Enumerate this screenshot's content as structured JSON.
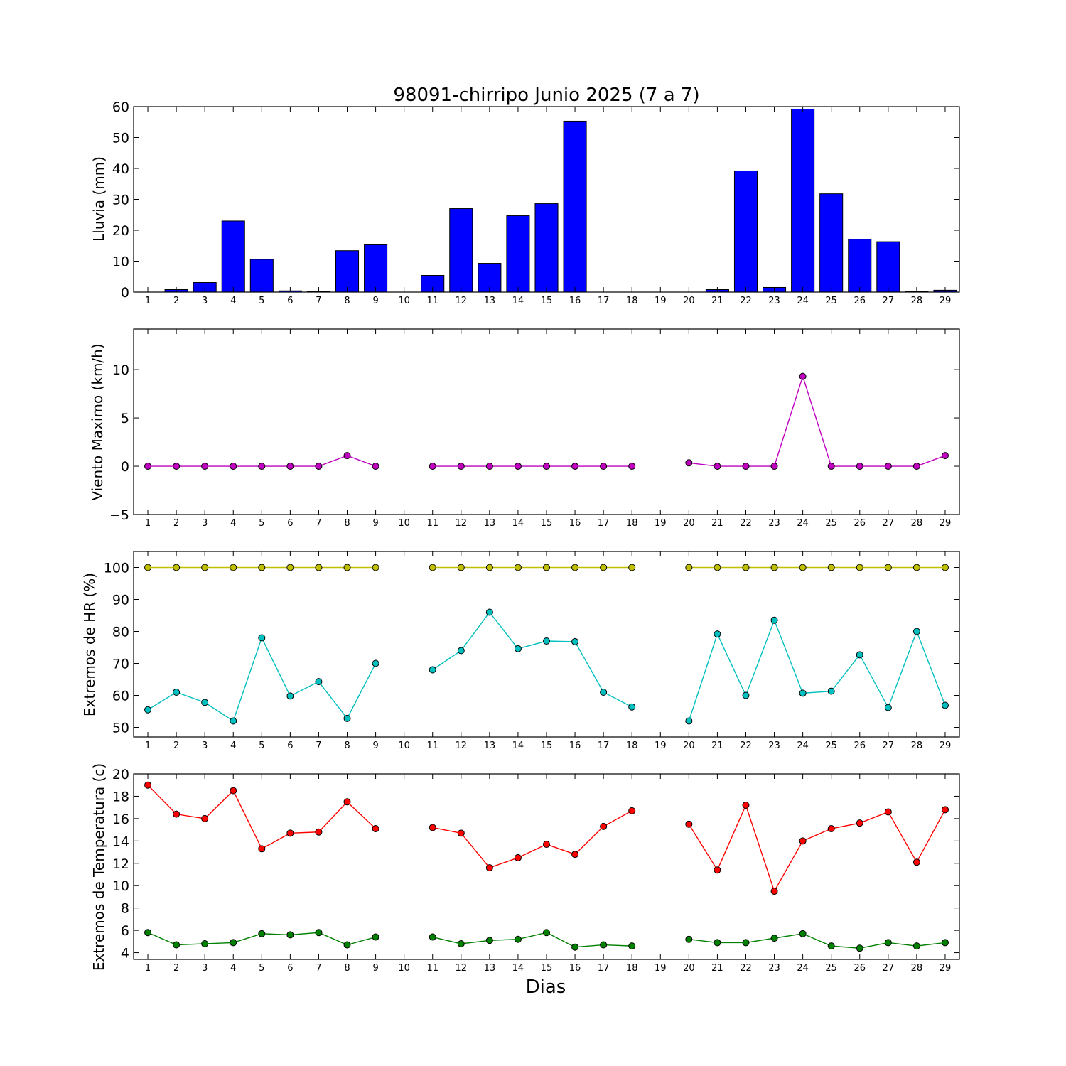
{
  "chart_data": [
    {
      "type": "bar",
      "title": "98091-chirripo Junio 2025  (7 a 7)",
      "xlabel": "",
      "ylabel": "Lluvia (mm)",
      "ylim": [
        0,
        60
      ],
      "yticks": [
        0,
        10,
        20,
        30,
        40,
        50,
        60
      ],
      "categories": [
        "1",
        "2",
        "3",
        "4",
        "5",
        "6",
        "7",
        "8",
        "9",
        "10",
        "11",
        "12",
        "13",
        "14",
        "15",
        "16",
        "17",
        "18",
        "19",
        "20",
        "21",
        "22",
        "23",
        "24",
        "25",
        "26",
        "27",
        "28",
        "29"
      ],
      "series": [
        {
          "values": [
            0,
            0.8,
            3.1,
            23.0,
            10.6,
            0.4,
            0.2,
            13.4,
            15.3,
            0,
            5.4,
            27.0,
            9.3,
            24.7,
            28.6,
            55.3,
            0,
            0,
            0,
            0,
            0.8,
            39.2,
            1.5,
            59.2,
            31.8,
            17.1,
            16.3,
            0.2,
            0.6
          ],
          "color": "#0000ff"
        }
      ],
      "grid": false
    },
    {
      "type": "line",
      "title": "",
      "xlabel": "",
      "ylabel": "Viento Maximo (km/h)",
      "ylim": [
        -5,
        14.2
      ],
      "yticks": [
        -5,
        0,
        5,
        10
      ],
      "ytick_labels": [
        "−5",
        "0",
        "5",
        "10"
      ],
      "x": [
        1,
        2,
        3,
        4,
        5,
        6,
        7,
        8,
        9,
        10,
        11,
        12,
        13,
        14,
        15,
        16,
        17,
        18,
        19,
        20,
        21,
        22,
        23,
        24,
        25,
        26,
        27,
        28,
        29
      ],
      "series": [
        {
          "values": [
            0,
            0,
            0,
            0,
            0,
            0,
            0,
            1.1,
            0,
            null,
            0,
            0,
            0,
            0,
            0,
            0,
            0,
            0,
            null,
            0.35,
            0,
            0,
            0,
            9.3,
            0,
            0,
            0,
            0,
            1.1
          ],
          "color": "#bf00bf"
        }
      ],
      "grid": false
    },
    {
      "type": "line",
      "title": "",
      "xlabel": "",
      "ylabel": "Extremos de HR (%)",
      "ylim": [
        47,
        105
      ],
      "yticks": [
        50,
        60,
        70,
        80,
        90,
        100
      ],
      "x": [
        1,
        2,
        3,
        4,
        5,
        6,
        7,
        8,
        9,
        10,
        11,
        12,
        13,
        14,
        15,
        16,
        17,
        18,
        19,
        20,
        21,
        22,
        23,
        24,
        25,
        26,
        27,
        28,
        29
      ],
      "series": [
        {
          "values": [
            100,
            100,
            100,
            100,
            100,
            100,
            100,
            100,
            100,
            null,
            100,
            100,
            100,
            100,
            100,
            100,
            100,
            100,
            null,
            100,
            100,
            100,
            100,
            100,
            100,
            100,
            100,
            100,
            100
          ],
          "color": "#bfbf00"
        },
        {
          "values": [
            55.5,
            61,
            57.8,
            52,
            78,
            59.8,
            64.3,
            52.8,
            70,
            null,
            68,
            74,
            86,
            74.6,
            77,
            76.8,
            61,
            56.4,
            null,
            52,
            79.2,
            60,
            83.5,
            60.7,
            61.3,
            72.7,
            56.2,
            80,
            56.9
          ],
          "color": "#00bfbf"
        }
      ],
      "grid": false
    },
    {
      "type": "line",
      "title": "",
      "xlabel": "Dias",
      "ylabel": "Extremos de Temperatura (c)",
      "ylim": [
        3.4,
        20
      ],
      "yticks": [
        4,
        6,
        8,
        10,
        12,
        14,
        16,
        18,
        20
      ],
      "x": [
        1,
        2,
        3,
        4,
        5,
        6,
        7,
        8,
        9,
        10,
        11,
        12,
        13,
        14,
        15,
        16,
        17,
        18,
        19,
        20,
        21,
        22,
        23,
        24,
        25,
        26,
        27,
        28,
        29
      ],
      "series": [
        {
          "values": [
            19,
            16.4,
            16,
            18.5,
            13.3,
            14.7,
            14.8,
            17.5,
            15.1,
            null,
            15.2,
            14.7,
            11.6,
            12.5,
            13.7,
            12.8,
            15.3,
            16.7,
            null,
            15.5,
            11.4,
            17.2,
            9.5,
            14,
            15.1,
            15.6,
            16.6,
            12.1,
            16.8
          ],
          "color": "#ff0000"
        },
        {
          "values": [
            5.8,
            4.7,
            4.8,
            4.9,
            5.7,
            5.6,
            5.8,
            4.7,
            5.4,
            null,
            5.4,
            4.8,
            5.1,
            5.2,
            5.8,
            4.5,
            4.7,
            4.6,
            null,
            5.2,
            4.9,
            4.9,
            5.3,
            5.7,
            4.6,
            4.4,
            4.9,
            4.6,
            4.9
          ],
          "color": "#008000"
        }
      ],
      "grid": false
    }
  ]
}
